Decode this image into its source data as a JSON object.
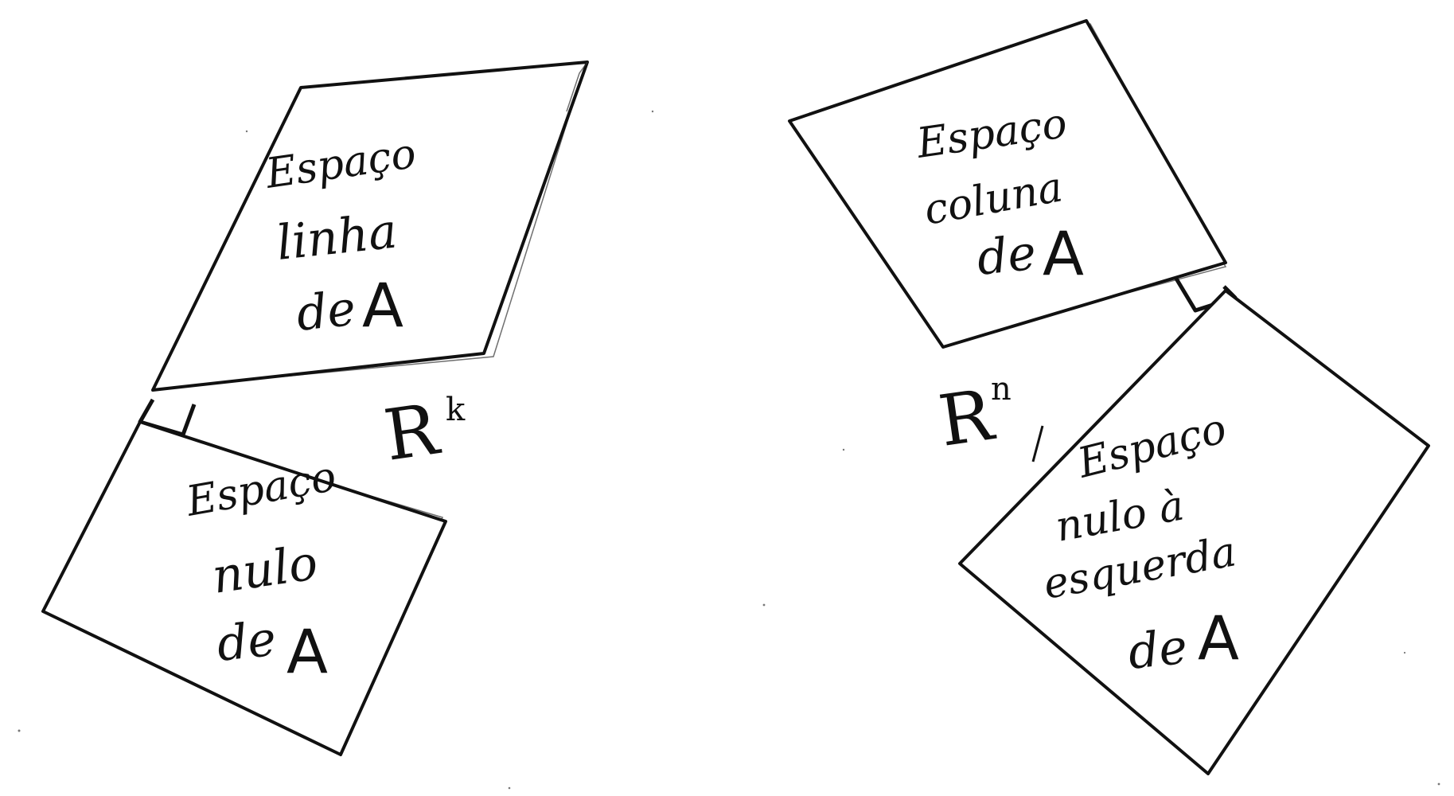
{
  "diagram": {
    "left_group": {
      "space_symbol": {
        "base": "R",
        "exponent": "k"
      },
      "row_space": {
        "line1": "Espaço",
        "line2": "linha",
        "line3_prefix": "de",
        "line3_letter": "A"
      },
      "null_space": {
        "line1": "Espaço",
        "line2": "nulo",
        "line3_prefix": "de",
        "line3_letter": "A"
      }
    },
    "right_group": {
      "space_symbol": {
        "base": "R",
        "exponent": "n"
      },
      "column_space": {
        "line1": "Espaço",
        "line2": "coluna",
        "line3_prefix": "de",
        "line3_letter": "A"
      },
      "left_null_space": {
        "line1": "Espaço",
        "line2": "nulo à",
        "line3": "esquerda",
        "line4_prefix": "de",
        "line4_letter": "A"
      }
    }
  }
}
